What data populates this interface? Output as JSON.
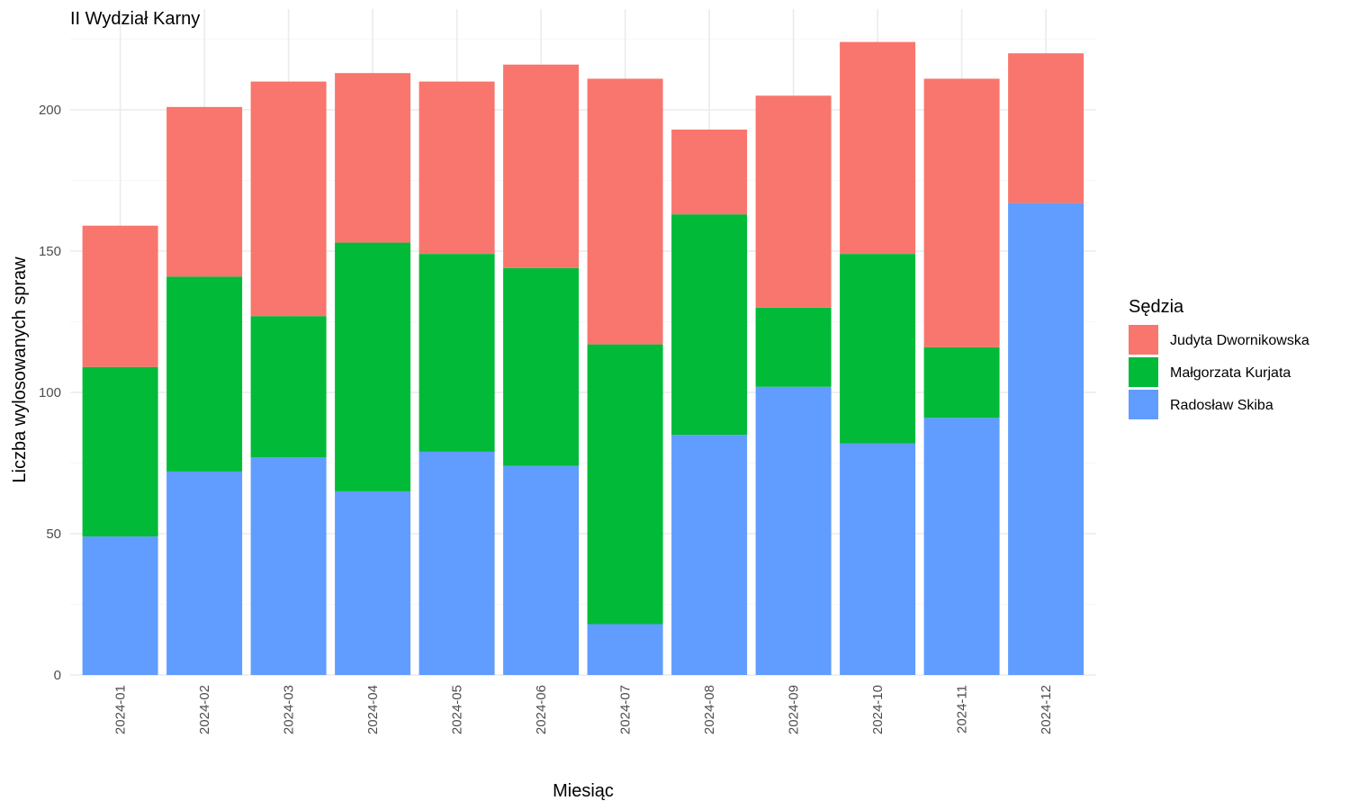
{
  "chart_data": {
    "type": "bar",
    "stacked": true,
    "title": "II Wydział Karny",
    "xlabel": "Miesiąc",
    "ylabel": "Liczba wylosowanych spraw",
    "ylim": [
      0,
      235
    ],
    "yticks": [
      0,
      50,
      100,
      150,
      200
    ],
    "grid": true,
    "legend_title": "Sędzia",
    "legend_position": "right",
    "categories": [
      "2024-01",
      "2024-02",
      "2024-03",
      "2024-04",
      "2024-05",
      "2024-06",
      "2024-07",
      "2024-08",
      "2024-09",
      "2024-10",
      "2024-11",
      "2024-12"
    ],
    "series": [
      {
        "name": "Radosław Skiba",
        "color": "#619CFF",
        "values": [
          49,
          72,
          77,
          65,
          79,
          74,
          18,
          85,
          102,
          82,
          91,
          167
        ]
      },
      {
        "name": "Małgorzata Kurjata",
        "color": "#00BA38",
        "values": [
          60,
          69,
          50,
          88,
          70,
          70,
          99,
          78,
          28,
          67,
          25,
          0
        ]
      },
      {
        "name": "Judyta Dwornikowska",
        "color": "#F8766D",
        "values": [
          50,
          60,
          83,
          60,
          61,
          72,
          94,
          30,
          75,
          75,
          95,
          53
        ]
      }
    ],
    "legend_order": [
      "Judyta Dwornikowska",
      "Małgorzata Kurjata",
      "Radosław Skiba"
    ]
  }
}
